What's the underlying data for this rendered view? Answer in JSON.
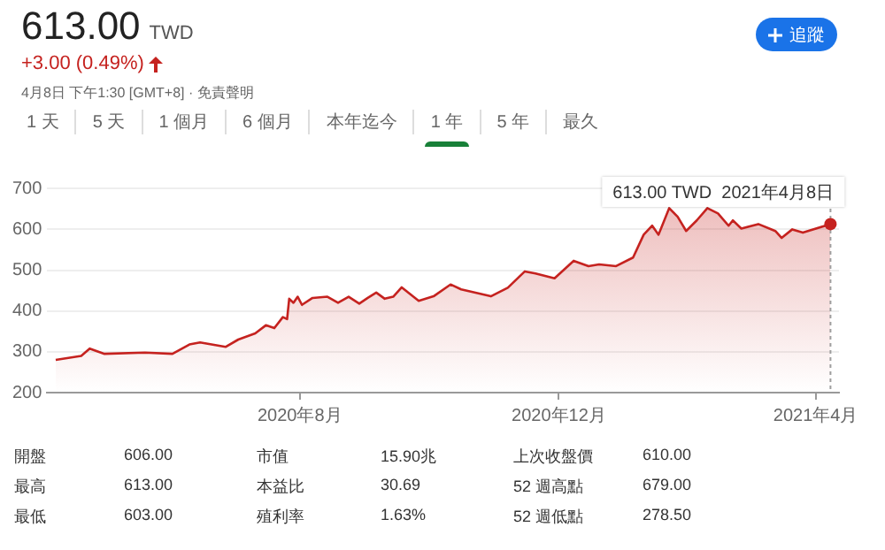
{
  "chart_data": {
    "type": "area",
    "x": [
      "2020-04-08",
      "2020-04-20",
      "2020-04-24",
      "2020-05-01",
      "2020-05-20",
      "2020-06-02",
      "2020-06-10",
      "2020-06-15",
      "2020-06-27",
      "2020-07-03",
      "2020-07-11",
      "2020-07-16",
      "2020-07-20",
      "2020-07-24",
      "2020-07-26",
      "2020-07-27",
      "2020-07-29",
      "2020-07-31",
      "2020-08-02",
      "2020-08-07",
      "2020-08-14",
      "2020-08-19",
      "2020-08-24",
      "2020-08-29",
      "2020-09-02",
      "2020-09-06",
      "2020-09-10",
      "2020-09-14",
      "2020-09-18",
      "2020-09-26",
      "2020-10-03",
      "2020-10-11",
      "2020-10-16",
      "2020-10-30",
      "2020-11-07",
      "2020-11-15",
      "2020-11-20",
      "2020-11-29",
      "2020-12-08",
      "2020-12-15",
      "2020-12-20",
      "2020-12-28",
      "2021-01-05",
      "2021-01-10",
      "2021-01-14",
      "2021-01-17",
      "2021-01-22",
      "2021-01-26",
      "2021-01-30",
      "2021-02-04",
      "2021-02-09",
      "2021-02-14",
      "2021-02-19",
      "2021-02-21",
      "2021-02-25",
      "2021-03-05",
      "2021-03-13",
      "2021-03-16",
      "2021-03-21",
      "2021-03-26",
      "2021-04-08"
    ],
    "series": [
      {
        "color": "#c5221f",
        "values": [
          280,
          290,
          308,
          295,
          298,
          295,
          318,
          323,
          312,
          330,
          345,
          365,
          358,
          385,
          380,
          430,
          420,
          435,
          415,
          432,
          435,
          420,
          435,
          418,
          432,
          445,
          430,
          435,
          458,
          425,
          436,
          465,
          453,
          436,
          457,
          497,
          492,
          480,
          523,
          510,
          514,
          510,
          531,
          587,
          609,
          587,
          652,
          631,
          596,
          622,
          652,
          639,
          609,
          622,
          602,
          613,
          596,
          579,
          600,
          592,
          613
        ]
      }
    ],
    "xlim": [
      "2020-04-04",
      "2021-04-12"
    ],
    "xticks": [
      {
        "value": "2020-08-01",
        "label": "2020年8月"
      },
      {
        "value": "2020-12-01",
        "label": "2020年12月"
      },
      {
        "value": "2021-04-01",
        "label": "2021年4月"
      }
    ],
    "ylim": [
      200,
      720
    ],
    "yticks": [
      200,
      300,
      400,
      500,
      600,
      700
    ],
    "grid": "y",
    "legend": false,
    "marker": "none",
    "line_style": "solid",
    "ref_lines": [
      {
        "axis": "x",
        "value": "2021-04-08",
        "color": "#9e9e9e",
        "line_style": "dotted"
      }
    ],
    "annotations": [
      "613.00",
      "TWD",
      "+3.00 (0.49%)",
      "4月8日 下午1:30 [GMT+8] · 免責聲明",
      "追蹤",
      "1 天",
      "5 天",
      "1 個月",
      "6 個月",
      "本年迄今",
      "1 年",
      "5 年",
      "最久",
      {
        "text": "613.00 TWD  2021年4月8日",
        "x": "2021-04-08",
        "y": 613
      },
      "開盤",
      "606.00",
      "市值",
      "15.90兆",
      "上次收盤價",
      "610.00",
      "最高",
      "613.00",
      "本益比",
      "30.69",
      "52 週高點",
      "679.00",
      "最低",
      "603.00",
      "殖利率",
      "1.63%",
      "52 週低點",
      "278.50"
    ]
  }
}
